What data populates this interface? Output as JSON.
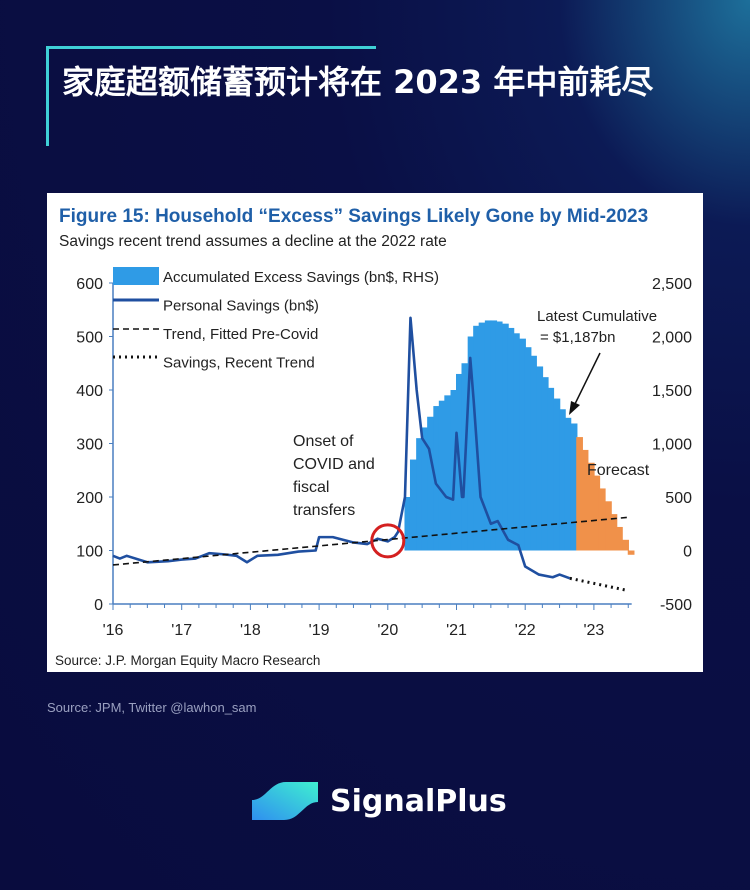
{
  "headline": "家庭超额储蓄预计将在 2023 年中前耗尽",
  "source_note": "Source: JPM, Twitter @lawhon_sam",
  "brand": {
    "name": "SignalPlus",
    "logo_lettering": "SignalPlus"
  },
  "colors": {
    "background": "#0a0f45",
    "accent": "#3fd0d6",
    "bars": "#2f9be6",
    "forecast": "#f0914a",
    "line": "#1f4fa0",
    "title": "#1f5fa8"
  },
  "chart_data": {
    "type": "bar+line",
    "title": "Figure 15: Household “Excess” Savings Likely Gone by Mid-2023",
    "subtitle": "Savings recent trend assumes a decline at the 2022 rate",
    "source": "Source: J.P. Morgan Equity Macro Research",
    "x_ticks": [
      "'16",
      "'17",
      "'18",
      "'19",
      "'20",
      "'21",
      "'22",
      "'23"
    ],
    "xlim": [
      2016,
      2023.55
    ],
    "y_left": {
      "ticks": [
        0,
        100,
        200,
        300,
        400,
        500,
        600
      ],
      "ylim": [
        0,
        600
      ]
    },
    "y_right": {
      "ticks": [
        "-500",
        "0",
        "500",
        "1,000",
        "1,500",
        "2,000",
        "2,500"
      ],
      "ylim": [
        -500,
        2500
      ]
    },
    "legend": [
      "Accumulated Excess Savings (bn$, RHS)",
      "Personal Savings (bn$)",
      "Trend, Fitted Pre-Covid",
      "Savings, Recent Trend"
    ],
    "legend_placement": "top-left",
    "annotations": {
      "onset": "Onset of COVID and fiscal transfers",
      "latest": "Latest Cumulative",
      "latest_value": "= $1,187bn",
      "forecast": "Forecast"
    },
    "series": [
      {
        "name": "Accumulated Excess Savings (bn$, RHS)",
        "type": "bar",
        "axis": "right",
        "x": [
          2020.25,
          2020.33,
          2020.42,
          2020.5,
          2020.58,
          2020.67,
          2020.75,
          2020.83,
          2020.92,
          2021.0,
          2021.08,
          2021.17,
          2021.25,
          2021.33,
          2021.42,
          2021.5,
          2021.58,
          2021.67,
          2021.75,
          2021.83,
          2021.92,
          2022.0,
          2022.08,
          2022.17,
          2022.25,
          2022.33,
          2022.42,
          2022.5,
          2022.58,
          2022.67
        ],
        "values": [
          500,
          850,
          1050,
          1150,
          1250,
          1350,
          1400,
          1450,
          1500,
          1650,
          1750,
          2000,
          2100,
          2130,
          2150,
          2150,
          2140,
          2120,
          2080,
          2030,
          1980,
          1900,
          1820,
          1720,
          1620,
          1520,
          1420,
          1320,
          1240,
          1187
        ]
      },
      {
        "name": "Forecast",
        "type": "bar",
        "axis": "right",
        "x": [
          2022.75,
          2022.83,
          2022.92,
          2023.0,
          2023.08,
          2023.17,
          2023.25,
          2023.33,
          2023.42,
          2023.5
        ],
        "values": [
          1060,
          940,
          820,
          700,
          580,
          460,
          340,
          220,
          100,
          -40
        ]
      },
      {
        "name": "Personal Savings (bn$)",
        "type": "line",
        "axis": "left",
        "x": [
          2016.0,
          2016.1,
          2016.2,
          2016.5,
          2016.8,
          2017.0,
          2017.2,
          2017.4,
          2017.6,
          2017.8,
          2017.95,
          2018.1,
          2018.4,
          2018.7,
          2018.95,
          2019.0,
          2019.2,
          2019.5,
          2019.7,
          2019.85,
          2020.0,
          2020.1,
          2020.15,
          2020.25,
          2020.33,
          2020.42,
          2020.5,
          2020.6,
          2020.7,
          2020.85,
          2020.95,
          2021.0,
          2021.08,
          2021.1,
          2021.2,
          2021.25,
          2021.35,
          2021.5,
          2021.6,
          2021.75,
          2021.9,
          2022.0,
          2022.2,
          2022.4,
          2022.5,
          2022.65
        ],
        "values": [
          90,
          85,
          90,
          78,
          80,
          83,
          85,
          95,
          93,
          90,
          78,
          90,
          92,
          98,
          100,
          125,
          125,
          115,
          112,
          122,
          117,
          125,
          135,
          200,
          535,
          400,
          310,
          290,
          225,
          200,
          195,
          320,
          200,
          200,
          460,
          380,
          200,
          150,
          155,
          120,
          110,
          70,
          55,
          50,
          55,
          48
        ]
      },
      {
        "name": "Trend, Fitted Pre-Covid",
        "type": "line",
        "style": "dashed",
        "axis": "left",
        "x": [
          2016,
          2023.5
        ],
        "values": [
          73,
          162
        ]
      },
      {
        "name": "Savings, Recent Trend",
        "type": "line",
        "style": "dotted",
        "axis": "left",
        "x": [
          2022.65,
          2023.5
        ],
        "values": [
          48,
          25
        ]
      }
    ]
  }
}
